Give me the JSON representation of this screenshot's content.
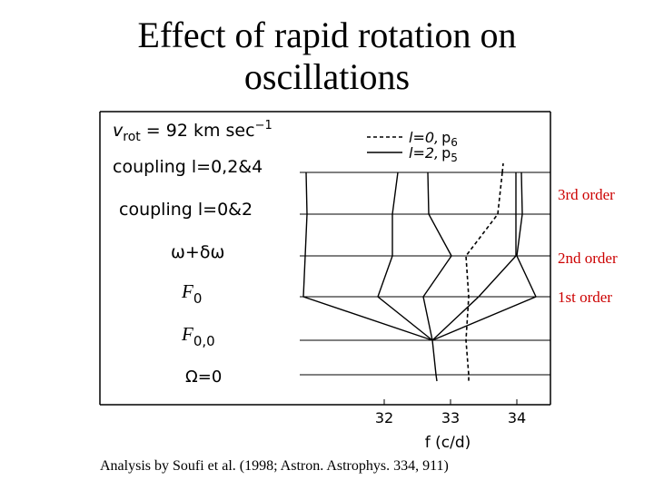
{
  "title": {
    "line1": "Effect of rapid rotation on",
    "line2": "oscillations"
  },
  "legend": {
    "dashed": {
      "l": "l=0,",
      "mode": "p",
      "sub": "6"
    },
    "solid": {
      "l": "l=2,",
      "mode": "p",
      "sub": "5"
    }
  },
  "levels": {
    "vrot": {
      "pre": "v",
      "sub": "rot",
      "text": " = 92 km sec",
      "sup": "−1"
    },
    "coupling024": "coupling l=0,2&4",
    "coupling02": "coupling l=0&2",
    "omega": "ω+δω",
    "f0": {
      "main": "F",
      "sub": "0"
    },
    "f00": {
      "main": "F",
      "sub": "0,0"
    },
    "omega0": "Ω=0"
  },
  "axis": {
    "ticks": [
      "32",
      "33",
      "34"
    ],
    "xlabel": "f (c/d)"
  },
  "orders": {
    "third": "3rd order",
    "second": "2nd order",
    "first": "1st order"
  },
  "caption": "Analysis by Soufi et al. (1998; Astron. Astrophys. 334, 911)"
}
